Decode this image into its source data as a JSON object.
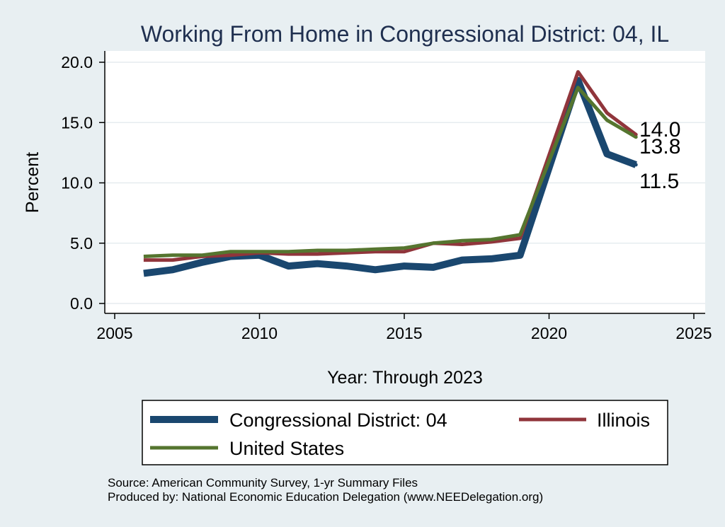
{
  "chart_data": {
    "type": "line",
    "title": "Working From Home in Congressional District: 04, IL",
    "xlabel": "Year: Through 2023",
    "ylabel": "Percent",
    "xlim": [
      2005,
      2025
    ],
    "ylim": [
      0,
      20
    ],
    "x_ticks": [
      "2005",
      "2010",
      "2015",
      "2020",
      "2025"
    ],
    "y_ticks": [
      "0.0",
      "5.0",
      "10.0",
      "15.0",
      "20.0"
    ],
    "grid": "horizontal",
    "legend_position": "bottom",
    "x": [
      2006,
      2007,
      2008,
      2009,
      2010,
      2011,
      2012,
      2013,
      2014,
      2015,
      2016,
      2017,
      2018,
      2019,
      2020,
      2021,
      2022,
      2023
    ],
    "series": [
      {
        "name": "Congressional District: 04",
        "color": "#1a476f",
        "values": [
          2.5,
          2.8,
          3.4,
          3.9,
          4.0,
          3.1,
          3.3,
          3.1,
          2.8,
          3.1,
          3.0,
          3.6,
          3.7,
          4.0,
          null,
          18.5,
          12.4,
          11.5
        ],
        "end_label": "11.5"
      },
      {
        "name": "Illinois",
        "color": "#90353b",
        "values": [
          3.6,
          3.6,
          3.9,
          4.0,
          4.2,
          4.1,
          4.1,
          4.2,
          4.3,
          4.3,
          5.0,
          4.9,
          5.1,
          5.4,
          null,
          19.2,
          15.8,
          14.0
        ],
        "end_label": "14.0"
      },
      {
        "name": "United States",
        "color": "#55752f",
        "values": [
          3.9,
          4.0,
          4.0,
          4.3,
          4.3,
          4.3,
          4.4,
          4.4,
          4.5,
          4.6,
          5.0,
          5.2,
          5.3,
          5.7,
          null,
          17.9,
          15.2,
          13.8
        ],
        "end_label": "13.8"
      }
    ]
  },
  "notes": {
    "source": "Source: American Community Survey, 1-yr Summary Files",
    "produced_by": "Produced by: National Economic Education Delegation (www.NEEDelegation.org)"
  }
}
